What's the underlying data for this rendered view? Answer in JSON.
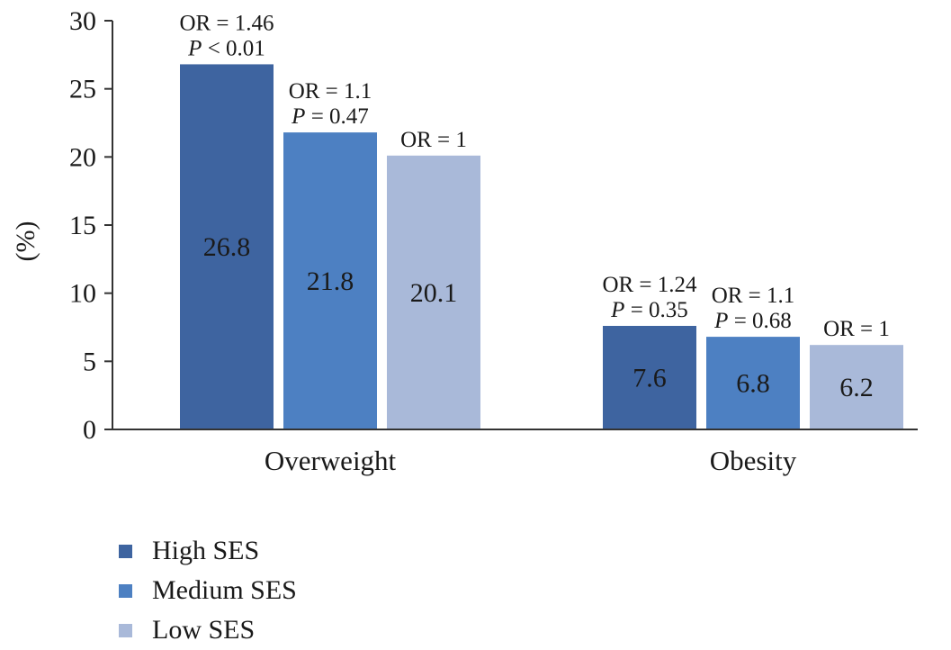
{
  "chart_data": {
    "type": "bar",
    "ylabel": "(%)",
    "xlabel": "",
    "ylim": [
      0,
      30
    ],
    "yticks": [
      "0",
      "5",
      "10",
      "15",
      "20",
      "25",
      "30"
    ],
    "categories": [
      "Overweight",
      "Obesity"
    ],
    "series": [
      {
        "name": "High SES",
        "color": "#3e64a0",
        "values": [
          26.8,
          7.6
        ],
        "value_labels": [
          "26.8",
          "7.6"
        ],
        "annotations": [
          [
            "OR = 1.46",
            "P < 0.01"
          ],
          [
            "OR = 1.24",
            "P = 0.35"
          ]
        ]
      },
      {
        "name": "Medium SES",
        "color": "#4d80c2",
        "values": [
          21.8,
          6.8
        ],
        "value_labels": [
          "21.8",
          "6.8"
        ],
        "annotations": [
          [
            "OR = 1.1",
            "P = 0.47"
          ],
          [
            "OR = 1.1",
            "P = 0.68"
          ]
        ]
      },
      {
        "name": "Low SES",
        "color": "#a9b9d9",
        "values": [
          20.1,
          6.2
        ],
        "value_labels": [
          "20.1",
          "6.2"
        ],
        "annotations": [
          [
            "OR = 1"
          ],
          [
            "OR = 1"
          ]
        ]
      }
    ],
    "legend_position": "bottom-left",
    "grid": false
  }
}
